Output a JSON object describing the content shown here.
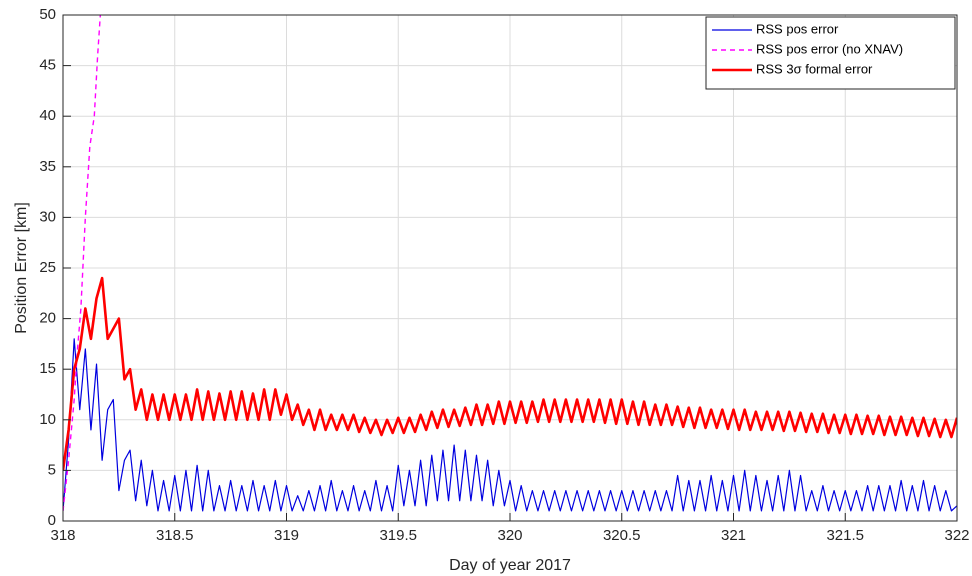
{
  "chart_data": {
    "type": "line",
    "xlabel": "Day of year 2017",
    "ylabel": "Position Error [km]",
    "xlim": [
      318,
      322
    ],
    "ylim": [
      0,
      50
    ],
    "xticks": [
      318,
      318.5,
      319,
      319.5,
      320,
      320.5,
      321,
      321.5,
      322
    ],
    "yticks": [
      0,
      5,
      10,
      15,
      20,
      25,
      30,
      35,
      40,
      45,
      50
    ],
    "grid": true,
    "legend": "top-right",
    "x": [
      318,
      318.025,
      318.05,
      318.075,
      318.1,
      318.125,
      318.15,
      318.175,
      318.2,
      318.225,
      318.25,
      318.275,
      318.3,
      318.325,
      318.35,
      318.375,
      318.4,
      318.425,
      318.45,
      318.475,
      318.5,
      318.525,
      318.55,
      318.575,
      318.6,
      318.625,
      318.65,
      318.675,
      318.7,
      318.725,
      318.75,
      318.775,
      318.8,
      318.825,
      318.85,
      318.875,
      318.9,
      318.925,
      318.95,
      318.975,
      319,
      319.025,
      319.05,
      319.075,
      319.1,
      319.125,
      319.15,
      319.175,
      319.2,
      319.225,
      319.25,
      319.275,
      319.3,
      319.325,
      319.35,
      319.375,
      319.4,
      319.425,
      319.45,
      319.475,
      319.5,
      319.525,
      319.55,
      319.575,
      319.6,
      319.625,
      319.65,
      319.675,
      319.7,
      319.725,
      319.75,
      319.775,
      319.8,
      319.825,
      319.85,
      319.875,
      319.9,
      319.925,
      319.95,
      319.975,
      320,
      320.025,
      320.05,
      320.075,
      320.1,
      320.125,
      320.15,
      320.175,
      320.2,
      320.225,
      320.25,
      320.275,
      320.3,
      320.325,
      320.35,
      320.375,
      320.4,
      320.425,
      320.45,
      320.475,
      320.5,
      320.525,
      320.55,
      320.575,
      320.6,
      320.625,
      320.65,
      320.675,
      320.7,
      320.725,
      320.75,
      320.775,
      320.8,
      320.825,
      320.85,
      320.875,
      320.9,
      320.925,
      320.95,
      320.975,
      321,
      321.025,
      321.05,
      321.075,
      321.1,
      321.125,
      321.15,
      321.175,
      321.2,
      321.225,
      321.25,
      321.275,
      321.3,
      321.325,
      321.35,
      321.375,
      321.4,
      321.425,
      321.45,
      321.475,
      321.5,
      321.525,
      321.55,
      321.575,
      321.6,
      321.625,
      321.65,
      321.675,
      321.7,
      321.725,
      321.75,
      321.775,
      321.8,
      321.825,
      321.85,
      321.875,
      321.9,
      321.925,
      321.95,
      321.975,
      322
    ],
    "series": [
      {
        "name": "RSS pos error",
        "color": "#0000e0",
        "dash": "solid",
        "values": [
          1,
          8,
          18,
          11,
          17,
          9,
          15.5,
          6,
          11,
          12,
          3,
          6,
          7,
          2,
          6,
          1.5,
          5,
          1,
          4,
          1,
          4.5,
          1,
          5,
          1,
          5.5,
          1,
          5,
          1,
          3.5,
          1,
          4,
          1,
          3.5,
          1,
          4,
          1,
          3.5,
          1,
          4,
          1,
          3.5,
          1,
          2.5,
          1,
          3,
          1,
          3.5,
          1,
          4,
          1,
          3,
          1,
          3.5,
          1,
          3,
          1,
          4,
          1,
          3.5,
          1,
          5.5,
          1.5,
          5,
          1.5,
          6,
          1.5,
          6.5,
          2,
          7,
          2,
          7.5,
          2,
          7,
          2,
          6.5,
          2,
          6,
          1.5,
          5,
          1.5,
          4,
          1,
          3.5,
          1,
          3,
          1,
          3,
          1,
          3,
          1,
          3,
          1,
          3,
          1,
          3,
          1,
          3,
          1,
          3,
          1,
          3,
          1,
          3,
          1,
          3,
          1,
          3,
          1,
          3,
          1,
          4.5,
          1,
          4,
          1,
          4,
          1,
          4.5,
          1,
          4,
          1,
          4.5,
          1,
          5,
          1,
          4.5,
          1,
          4,
          1,
          4.5,
          1,
          5,
          1,
          4.5,
          1,
          3,
          1,
          3.5,
          1,
          3,
          1,
          3,
          1,
          3,
          1,
          3.5,
          1,
          3.5,
          1,
          3.5,
          1,
          4,
          1,
          3.5,
          1,
          4,
          1,
          3.5,
          1,
          3,
          1,
          1.5
        ]
      },
      {
        "name": "RSS pos error (no XNAV)",
        "color": "#ff00ff",
        "dash": "dashed",
        "x": [
          318,
          318.025,
          318.05,
          318.065,
          318.08,
          318.1,
          318.12,
          318.14,
          318.155,
          318.17
        ],
        "values": [
          1,
          6,
          12,
          17,
          21,
          30,
          37,
          40,
          46,
          51
        ]
      },
      {
        "name": "RSS 3σ formal error",
        "color": "#ff0000",
        "dash": "solid",
        "values": [
          5,
          9,
          15,
          17,
          21,
          18,
          22,
          24,
          18,
          19,
          20,
          14,
          15,
          11,
          13,
          10,
          12.5,
          10,
          12.5,
          10,
          12.5,
          10,
          12.5,
          10,
          13,
          10,
          12.8,
          10,
          12.6,
          10,
          12.8,
          10,
          12.8,
          10,
          12.6,
          10,
          13,
          10,
          13,
          10.5,
          12.5,
          10,
          11.5,
          9.5,
          11,
          9,
          11,
          9,
          10.5,
          9,
          10.5,
          9,
          10.5,
          8.8,
          10.2,
          8.7,
          10,
          8.5,
          10,
          8.7,
          10.2,
          8.7,
          10.2,
          8.8,
          10.5,
          9,
          10.8,
          9.2,
          11,
          9.3,
          11,
          9.4,
          11.2,
          9.5,
          11.5,
          9.5,
          11.5,
          9.6,
          11.8,
          9.6,
          11.8,
          9.7,
          11.8,
          9.7,
          11.8,
          9.8,
          12,
          9.8,
          12,
          9.8,
          12,
          9.8,
          12,
          9.8,
          12,
          9.8,
          12,
          9.7,
          12,
          9.6,
          12,
          9.6,
          11.8,
          9.5,
          11.8,
          9.5,
          11.5,
          9.5,
          11.5,
          9.5,
          11.3,
          9.3,
          11.2,
          9.2,
          11.2,
          9.2,
          11,
          9.2,
          11,
          9.1,
          11,
          9,
          11,
          9,
          10.8,
          9,
          10.8,
          9,
          10.8,
          8.9,
          10.8,
          8.9,
          10.7,
          8.8,
          10.6,
          8.8,
          10.6,
          8.7,
          10.5,
          8.7,
          10.5,
          8.6,
          10.5,
          8.6,
          10.4,
          8.6,
          10.4,
          8.5,
          10.3,
          8.5,
          10.3,
          8.5,
          10.2,
          8.4,
          10.2,
          8.4,
          10.1,
          8.3,
          10,
          8.3,
          10.2
        ]
      }
    ]
  }
}
